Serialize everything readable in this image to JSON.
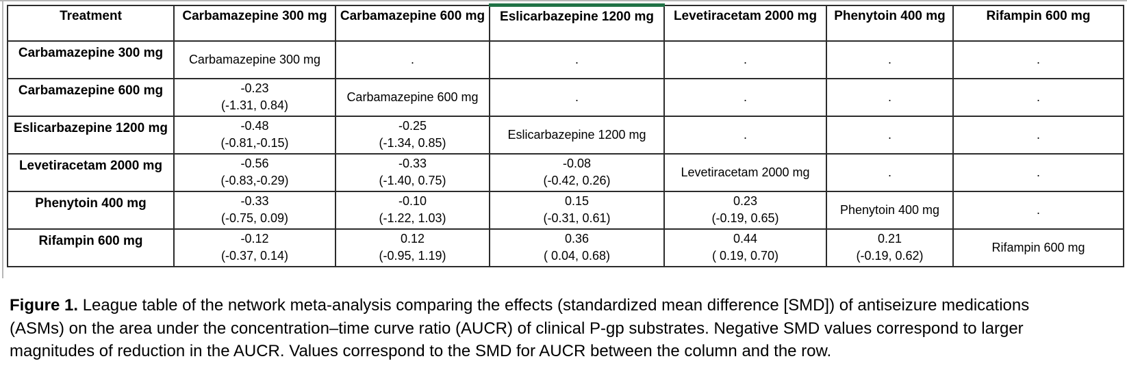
{
  "colors": {
    "cell_highlight_green": "#1f7245",
    "grid_border": "#2b2b2b",
    "window_edge_gray": "#b7b7b7"
  },
  "table": {
    "header": [
      "Treatment",
      "Carbamazepine 300 mg",
      "Carbamazepine 600 mg",
      "Eslicarbazepine 1200 mg",
      "Levetiracetam 2000 mg",
      "Phenytoin 400 mg",
      "Rifampin 600 mg"
    ],
    "highlight_column_index": 3,
    "rows": [
      {
        "label": "Carbamazepine 300 mg",
        "cells": [
          "Carbamazepine 300 mg",
          ".",
          ".",
          ".",
          ".",
          "."
        ]
      },
      {
        "label": "Carbamazepine 600 mg",
        "cells": [
          [
            "-0.23",
            "(-1.31, 0.84)"
          ],
          "Carbamazepine 600 mg",
          ".",
          ".",
          ".",
          "."
        ]
      },
      {
        "label": "Eslicarbazepine 1200 mg",
        "cells": [
          [
            "-0.48",
            "(-0.81,-0.15)"
          ],
          [
            "-0.25",
            "(-1.34, 0.85)"
          ],
          "Eslicarbazepine 1200 mg",
          ".",
          ".",
          "."
        ]
      },
      {
        "label": "Levetiracetam 2000 mg",
        "cells": [
          [
            "-0.56",
            "(-0.83,-0.29)"
          ],
          [
            "-0.33",
            "(-1.40, 0.75)"
          ],
          [
            "-0.08",
            "(-0.42, 0.26)"
          ],
          "Levetiracetam 2000 mg",
          ".",
          "."
        ]
      },
      {
        "label": "Phenytoin 400 mg",
        "cells": [
          [
            "-0.33",
            "(-0.75, 0.09)"
          ],
          [
            "-0.10",
            "(-1.22, 1.03)"
          ],
          [
            "0.15",
            "(-0.31, 0.61)"
          ],
          [
            "0.23",
            "(-0.19, 0.65)"
          ],
          "Phenytoin 400 mg",
          "."
        ]
      },
      {
        "label": "Rifampin 600 mg",
        "cells": [
          [
            "-0.12",
            "(-0.37, 0.14)"
          ],
          [
            "0.12",
            "(-0.95, 1.19)"
          ],
          [
            "0.36",
            "( 0.04, 0.68)"
          ],
          [
            "0.44",
            "( 0.19, 0.70)"
          ],
          [
            "0.21",
            "(-0.19, 0.62)"
          ],
          "Rifampin 600 mg"
        ]
      }
    ]
  },
  "caption": {
    "label": "Figure 1.",
    "text": " League table of the network meta-analysis comparing the effects (standardized mean difference [SMD]) of antiseizure medications (ASMs) on the area under the concentration–time curve ratio (AUCR) of clinical P-gp substrates. Negative SMD values correspond to larger magnitudes of reduction in the AUCR. Values correspond to the SMD for AUCR between the column and the row."
  },
  "chart_data": {
    "type": "table",
    "title": "League table of network meta-analysis: SMD for AUCR of clinical P-gp substrates (column vs. row)",
    "treatments": [
      "Carbamazepine 300 mg",
      "Carbamazepine 600 mg",
      "Eslicarbazepine 1200 mg",
      "Levetiracetam 2000 mg",
      "Phenytoin 400 mg",
      "Rifampin 600 mg"
    ],
    "comparisons": [
      {
        "row": "Carbamazepine 600 mg",
        "column": "Carbamazepine 300 mg",
        "smd": -0.23,
        "ci": [
          -1.31,
          0.84
        ]
      },
      {
        "row": "Eslicarbazepine 1200 mg",
        "column": "Carbamazepine 300 mg",
        "smd": -0.48,
        "ci": [
          -0.81,
          -0.15
        ]
      },
      {
        "row": "Eslicarbazepine 1200 mg",
        "column": "Carbamazepine 600 mg",
        "smd": -0.25,
        "ci": [
          -1.34,
          0.85
        ]
      },
      {
        "row": "Levetiracetam 2000 mg",
        "column": "Carbamazepine 300 mg",
        "smd": -0.56,
        "ci": [
          -0.83,
          -0.29
        ]
      },
      {
        "row": "Levetiracetam 2000 mg",
        "column": "Carbamazepine 600 mg",
        "smd": -0.33,
        "ci": [
          -1.4,
          0.75
        ]
      },
      {
        "row": "Levetiracetam 2000 mg",
        "column": "Eslicarbazepine 1200 mg",
        "smd": -0.08,
        "ci": [
          -0.42,
          0.26
        ]
      },
      {
        "row": "Phenytoin 400 mg",
        "column": "Carbamazepine 300 mg",
        "smd": -0.33,
        "ci": [
          -0.75,
          0.09
        ]
      },
      {
        "row": "Phenytoin 400 mg",
        "column": "Carbamazepine 600 mg",
        "smd": -0.1,
        "ci": [
          -1.22,
          1.03
        ]
      },
      {
        "row": "Phenytoin 400 mg",
        "column": "Eslicarbazepine 1200 mg",
        "smd": 0.15,
        "ci": [
          -0.31,
          0.61
        ]
      },
      {
        "row": "Phenytoin 400 mg",
        "column": "Levetiracetam 2000 mg",
        "smd": 0.23,
        "ci": [
          -0.19,
          0.65
        ]
      },
      {
        "row": "Rifampin 600 mg",
        "column": "Carbamazepine 300 mg",
        "smd": -0.12,
        "ci": [
          -0.37,
          0.14
        ]
      },
      {
        "row": "Rifampin 600 mg",
        "column": "Carbamazepine 600 mg",
        "smd": 0.12,
        "ci": [
          -0.95,
          1.19
        ]
      },
      {
        "row": "Rifampin 600 mg",
        "column": "Eslicarbazepine 1200 mg",
        "smd": 0.36,
        "ci": [
          0.04,
          0.68
        ]
      },
      {
        "row": "Rifampin 600 mg",
        "column": "Levetiracetam 2000 mg",
        "smd": 0.44,
        "ci": [
          0.19,
          0.7
        ]
      },
      {
        "row": "Rifampin 600 mg",
        "column": "Phenytoin 400 mg",
        "smd": 0.21,
        "ci": [
          -0.19,
          0.62
        ]
      }
    ]
  }
}
